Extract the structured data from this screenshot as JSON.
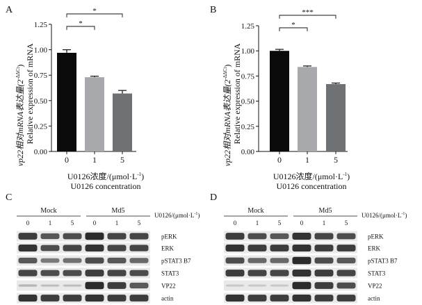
{
  "colors": {
    "bar_dark": "#0a0a0a",
    "bar_light": "#a7a9ac",
    "bar_mid": "#6f7275",
    "axis": "#111111",
    "blot_band": "#1c1c1c"
  },
  "chart_data": [
    {
      "panel": "A",
      "type": "bar",
      "categories": [
        "0",
        "1",
        "5"
      ],
      "values": [
        0.97,
        0.73,
        0.57
      ],
      "errors": [
        0.03,
        0.01,
        0.03
      ],
      "ylim": [
        0,
        1.25
      ],
      "yticks": [
        "0.00",
        "0.25",
        "0.50",
        "0.75",
        "1.00",
        "1.25"
      ],
      "ylabel_cn": "vp22相对mRNA表达量(2",
      "ylabel_sup": "-ΔΔCt",
      "ylabel_close": ")",
      "ylabel_en": "Relative expression of mRNA",
      "xlabel_cn": "U0126浓度/(μmol·L",
      "xlabel_sup": "-1",
      "xlabel_close": ")",
      "xlabel_en": "U0126 concentration",
      "significance": [
        {
          "from": 0,
          "to": 1,
          "label": "*"
        },
        {
          "from": 0,
          "to": 2,
          "label": "*"
        }
      ]
    },
    {
      "panel": "B",
      "type": "bar",
      "categories": [
        "0",
        "1",
        "5"
      ],
      "values": [
        1.0,
        0.84,
        0.67
      ],
      "errors": [
        0.015,
        0.01,
        0.01
      ],
      "ylim": [
        0,
        1.25
      ],
      "yticks": [
        "0.00",
        "0.25",
        "0.50",
        "0.75",
        "1.00",
        "1.25"
      ],
      "ylabel_cn": "vp22相对mRNA表达量(2",
      "ylabel_sup": "-ΔΔCt",
      "ylabel_close": ")",
      "ylabel_en": "Relative expression of mRNA",
      "xlabel_cn": "U0126浓度/(μmol·L",
      "xlabel_sup": "-1",
      "xlabel_close": ")",
      "xlabel_en": "U0126 concentration",
      "significance": [
        {
          "from": 0,
          "to": 1,
          "label": "*"
        },
        {
          "from": 0,
          "to": 2,
          "label": "***"
        }
      ]
    }
  ],
  "blots": [
    {
      "panel": "C",
      "groups": [
        "Mock",
        "Md5"
      ],
      "lanes": [
        "0",
        "1",
        "5",
        "0",
        "1",
        "5"
      ],
      "unit_label": "U0126/(μmol·L",
      "unit_sup": "-1",
      "unit_close": ")",
      "rows": [
        {
          "name": "pERK",
          "intensity": [
            0.85,
            0.7,
            0.75,
            0.95,
            0.8,
            0.8
          ]
        },
        {
          "name": "ERK",
          "intensity": [
            0.9,
            0.75,
            0.8,
            0.9,
            0.8,
            0.8
          ]
        },
        {
          "name": "pSTAT3 B7",
          "intensity": [
            0.7,
            0.5,
            0.55,
            0.75,
            0.7,
            0.6
          ]
        },
        {
          "name": "STAT3",
          "intensity": [
            0.8,
            0.75,
            0.75,
            0.85,
            0.8,
            0.75
          ]
        },
        {
          "name": "VP22",
          "intensity": [
            0.15,
            0.1,
            0.1,
            0.95,
            0.85,
            0.7
          ]
        },
        {
          "name": "actin",
          "intensity": [
            0.9,
            0.85,
            0.85,
            0.9,
            0.85,
            0.85
          ]
        }
      ]
    },
    {
      "panel": "D",
      "groups": [
        "Mock",
        "Md5"
      ],
      "lanes": [
        "0",
        "1",
        "5",
        "0",
        "1",
        "5"
      ],
      "unit_label": "U0126/(μmol·L",
      "unit_sup": "-1",
      "unit_close": ")",
      "rows": [
        {
          "name": "pERK",
          "intensity": [
            0.85,
            0.75,
            0.7,
            0.9,
            0.8,
            0.75
          ]
        },
        {
          "name": "ERK",
          "intensity": [
            0.9,
            0.85,
            0.85,
            0.9,
            0.85,
            0.85
          ]
        },
        {
          "name": "pSTAT3 B7",
          "intensity": [
            0.75,
            0.6,
            0.6,
            0.95,
            0.75,
            0.7
          ]
        },
        {
          "name": "STAT3",
          "intensity": [
            0.85,
            0.8,
            0.8,
            0.9,
            0.85,
            0.8
          ]
        },
        {
          "name": "VP22",
          "intensity": [
            0.05,
            0.05,
            0.05,
            0.95,
            0.85,
            0.75
          ]
        },
        {
          "name": "actin",
          "intensity": [
            0.9,
            0.85,
            0.85,
            0.9,
            0.85,
            0.85
          ]
        }
      ]
    }
  ]
}
